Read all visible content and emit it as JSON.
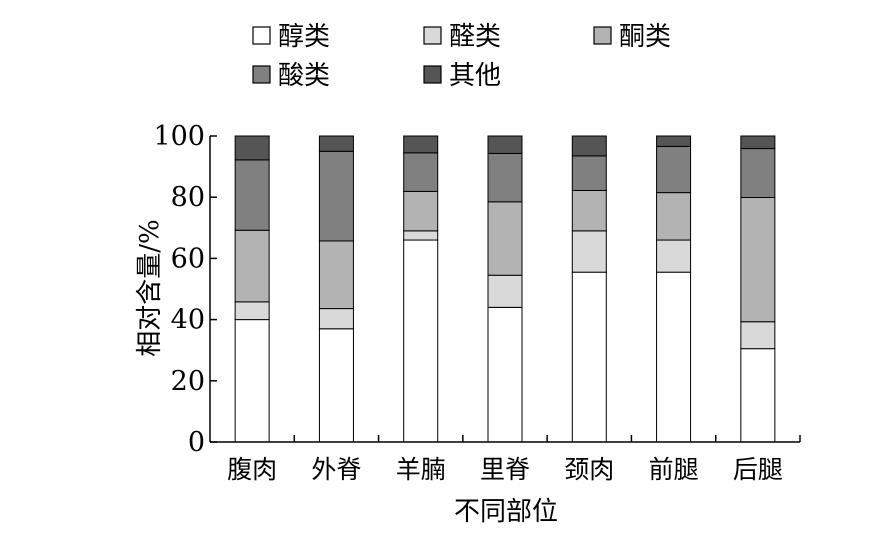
{
  "chart_data": {
    "type": "bar",
    "stacked": true,
    "xlabel": "不同部位",
    "ylabel": "相对含量/%",
    "ylim": [
      0,
      100
    ],
    "yticks": [
      0,
      20,
      40,
      60,
      80,
      100
    ],
    "grid": false,
    "legend_position": "top",
    "categories": [
      "腹肉",
      "外脊",
      "羊腩",
      "里脊",
      "颈肉",
      "前腿",
      "后腿"
    ],
    "series": [
      {
        "name": "醇类",
        "color": "#ffffff",
        "values": [
          40.0,
          37.0,
          66.0,
          44.0,
          55.5,
          55.5,
          30.5
        ]
      },
      {
        "name": "醛类",
        "color": "#d9d9d9",
        "values": [
          5.8,
          6.6,
          3.0,
          10.5,
          13.5,
          10.5,
          8.8
        ]
      },
      {
        "name": "酮类",
        "color": "#b3b3b3",
        "values": [
          23.4,
          22.1,
          12.9,
          24.0,
          13.2,
          15.5,
          40.6
        ]
      },
      {
        "name": "酸类",
        "color": "#808080",
        "values": [
          23.0,
          29.3,
          12.6,
          15.8,
          11.3,
          15.1,
          16.0
        ]
      },
      {
        "name": "其他",
        "color": "#555555",
        "values": [
          7.8,
          5.0,
          5.5,
          5.7,
          6.5,
          3.4,
          4.1
        ]
      }
    ]
  }
}
